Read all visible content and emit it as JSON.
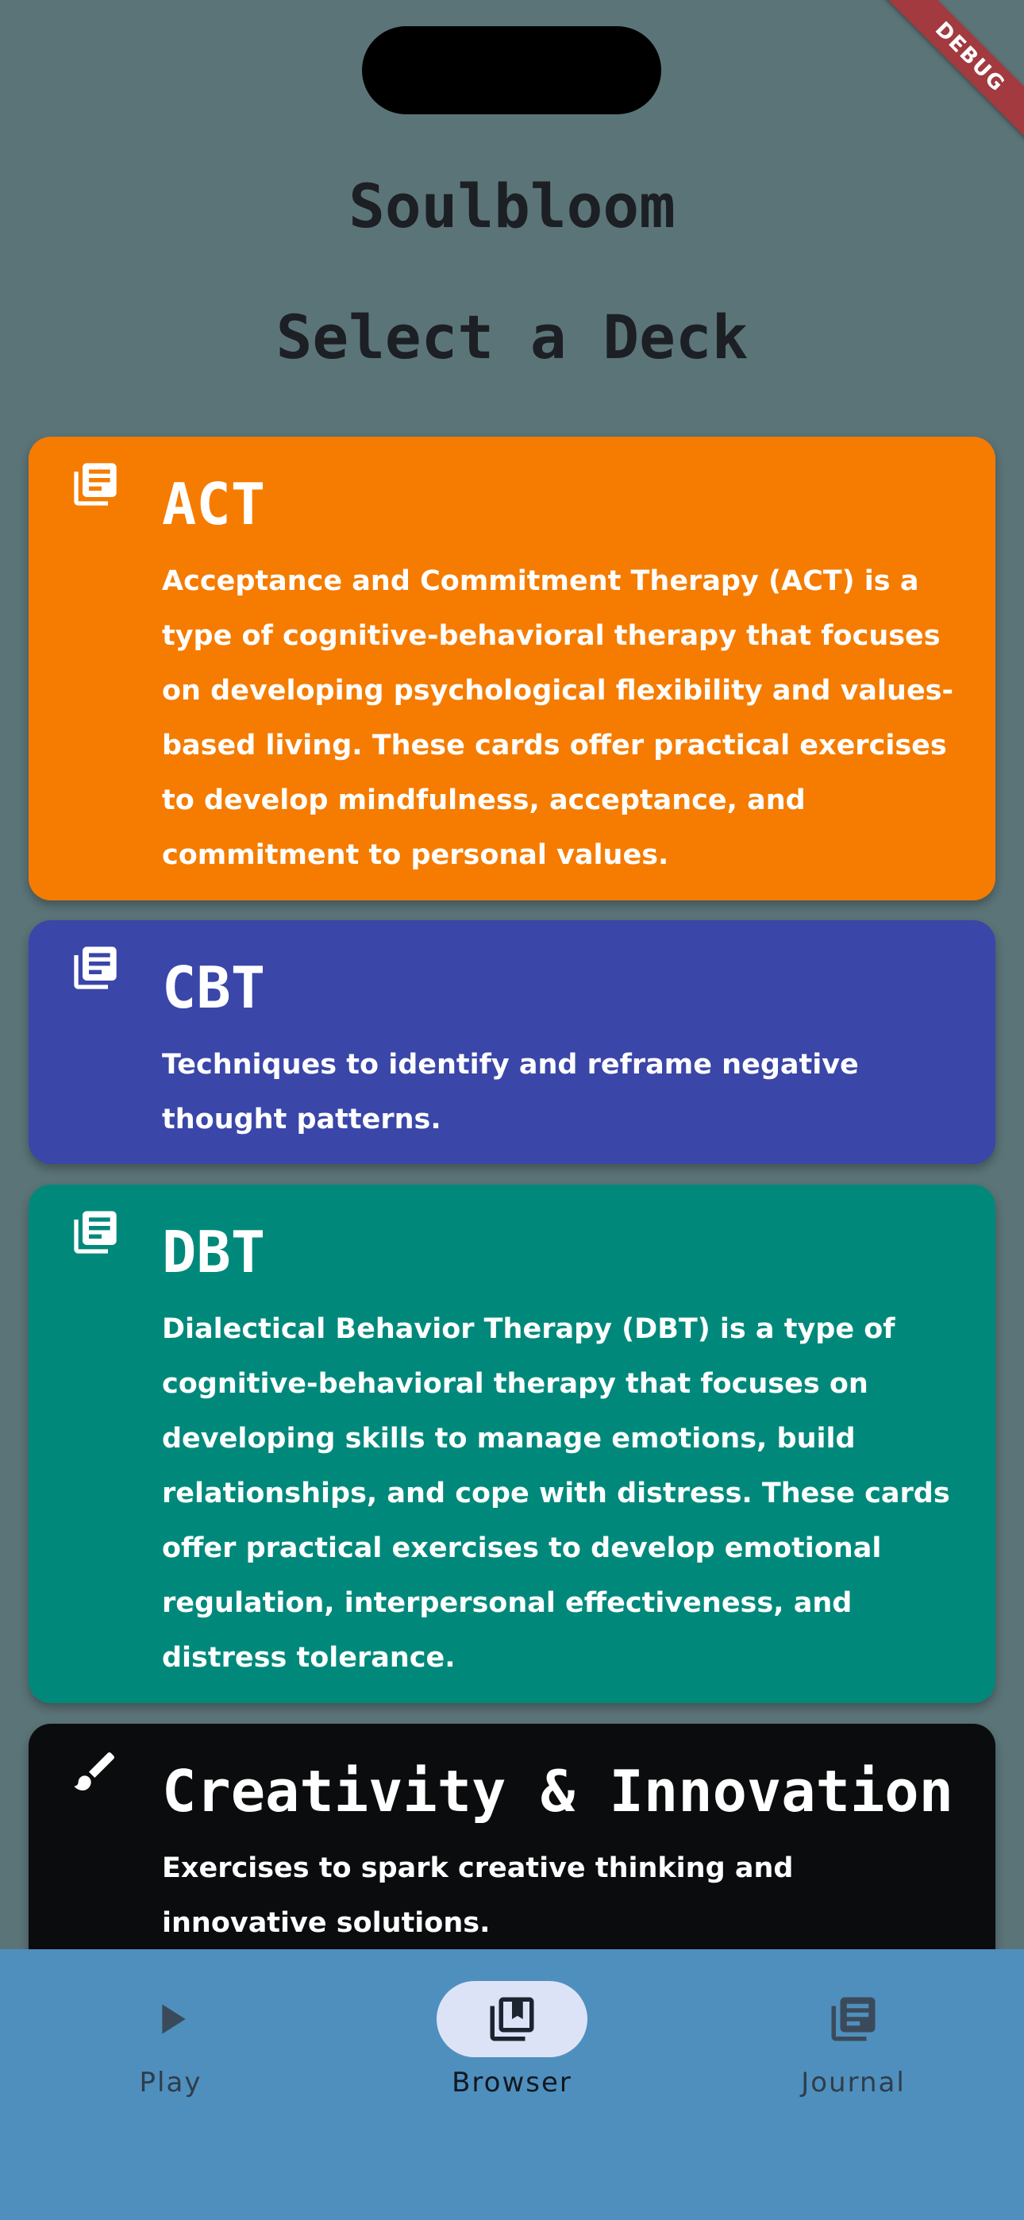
{
  "debug_banner": "DEBUG",
  "app_title": "Soulbloom",
  "section_title": "Select a Deck",
  "decks": [
    {
      "title": "ACT",
      "icon": "library-books-icon",
      "color": "#f57c00",
      "description": "Acceptance and Commitment Therapy (ACT) is a type of cognitive-behavioral therapy that focuses on developing psychological flexibility and values-based living. These cards offer practical exercises to develop mindfulness, acceptance, and commitment to personal values."
    },
    {
      "title": "CBT",
      "icon": "library-books-icon",
      "color": "#3a46a8",
      "description": "Techniques to identify and reframe negative thought patterns."
    },
    {
      "title": "DBT",
      "icon": "library-books-icon",
      "color": "#00897b",
      "description": "Dialectical Behavior Therapy (DBT) is a type of cognitive-behavioral therapy that focuses on developing skills to manage emotions, build relationships, and cope with distress. These cards offer practical exercises to develop emotional regulation, interpersonal effectiveness, and distress tolerance."
    },
    {
      "title": "Creativity & Innovation",
      "icon": "brush-icon",
      "color": "#0a0c0d",
      "description": "Exercises to spark creative thinking and innovative solutions."
    }
  ],
  "nav": {
    "selected": "Browser",
    "items": [
      {
        "label": "Play",
        "icon": "play-icon"
      },
      {
        "label": "Browser",
        "icon": "bookmarks-icon"
      },
      {
        "label": "Journal",
        "icon": "library-books-icon"
      }
    ]
  },
  "colors": {
    "background": "#5b7478",
    "nav_background": "#4f8fbe",
    "nav_active_pill": "#dde3f7"
  }
}
